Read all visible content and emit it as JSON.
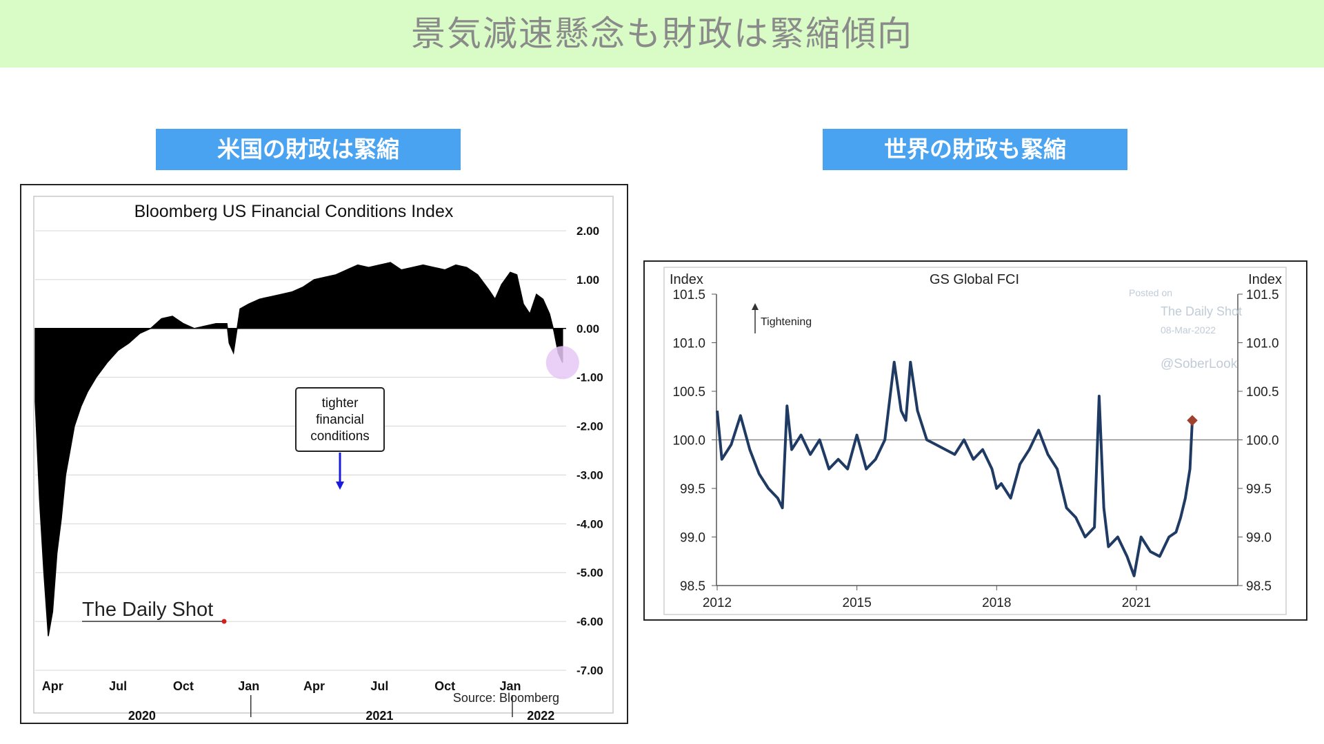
{
  "banner": {
    "title": "景気減速懸念も財政は緊縮傾向"
  },
  "labels": {
    "left": "米国の財政は緊縮",
    "right": "世界の財政も緊縮"
  },
  "colors": {
    "banner_bg": "#d9fcc7",
    "label_bg": "#4aa3f0",
    "us_fill": "#000000",
    "gs_line": "#1f3a63",
    "marker": "#a0412d",
    "highlight": "#e6c8f5"
  },
  "chart_data": [
    {
      "type": "area",
      "title": "Bloomberg US Financial Conditions Index",
      "ylim": [
        -7,
        2
      ],
      "y_ticks": [
        "2.00",
        "1.00",
        "0.00",
        "-1.00",
        "-2.00",
        "-3.00",
        "-4.00",
        "-5.00",
        "-6.00",
        "-7.00"
      ],
      "y_tick_values": [
        2,
        1,
        0,
        -1,
        -2,
        -3,
        -4,
        -5,
        -6,
        -7
      ],
      "x_month_labels": [
        "Apr",
        "Jul",
        "Oct",
        "Jan",
        "Apr",
        "Jul",
        "Oct",
        "Jan"
      ],
      "x_month_values": [
        0,
        3,
        6,
        9,
        12,
        15,
        18,
        21
      ],
      "x_year_labels": [
        "2020",
        "2021",
        "2022"
      ],
      "x_year_values": [
        4.1,
        15,
        22.4
      ],
      "xlim": [
        -0.8,
        23.5
      ],
      "annotation": [
        "tighter",
        "financial",
        "conditions"
      ],
      "source": "Source: Bloomberg",
      "watermark": "The Daily Shot",
      "series": [
        {
          "x": [
            -0.8,
            -0.6,
            -0.4,
            -0.2,
            0,
            0.2,
            0.4,
            0.6,
            0.8,
            1,
            1.3,
            1.6,
            2,
            2.5,
            3,
            3.5,
            4,
            4.5,
            5,
            5.5,
            6,
            6.5,
            7,
            7.5,
            8,
            8.1,
            8.3,
            8.6,
            9,
            9.5,
            10,
            10.5,
            11,
            11.5,
            12,
            12.5,
            13,
            13.5,
            14,
            14.5,
            15,
            15.5,
            16,
            16.5,
            17,
            17.5,
            18,
            18.5,
            19,
            19.5,
            20,
            20.3,
            20.6,
            21,
            21.3,
            21.6,
            21.9,
            22.2,
            22.5,
            22.8,
            23,
            23.2,
            23.4
          ],
          "values": [
            -1.5,
            -3.5,
            -5.0,
            -6.3,
            -5.8,
            -4.6,
            -3.9,
            -3.0,
            -2.5,
            -2.0,
            -1.6,
            -1.3,
            -1.0,
            -0.7,
            -0.45,
            -0.3,
            -0.1,
            0.0,
            0.2,
            0.25,
            0.1,
            0.0,
            0.05,
            0.1,
            0.1,
            -0.3,
            -0.5,
            0.4,
            0.5,
            0.6,
            0.65,
            0.7,
            0.75,
            0.85,
            1.0,
            1.05,
            1.1,
            1.2,
            1.3,
            1.25,
            1.3,
            1.35,
            1.2,
            1.25,
            1.3,
            1.25,
            1.2,
            1.3,
            1.25,
            1.1,
            0.8,
            0.6,
            0.9,
            1.15,
            1.1,
            0.5,
            0.3,
            0.7,
            0.6,
            0.3,
            -0.05,
            -0.5,
            -0.7
          ]
        }
      ]
    },
    {
      "type": "line",
      "title": "GS Global FCI",
      "ylabel_left": "Index",
      "ylabel_right": "Index",
      "ylim": [
        98.5,
        101.5
      ],
      "y_ticks": [
        "101.5",
        "101.0",
        "100.5",
        "100.0",
        "99.5",
        "99.0",
        "98.5"
      ],
      "y_tick_values": [
        101.5,
        101.0,
        100.5,
        100.0,
        99.5,
        99.0,
        98.5
      ],
      "x_ticks": [
        "2012",
        "2015",
        "2018",
        "2021"
      ],
      "x_tick_values": [
        2012,
        2015,
        2018,
        2021
      ],
      "xlim": [
        2012,
        2022.2
      ],
      "annotation": "Tightening",
      "watermark": [
        "Posted on",
        "The Daily Shot",
        "08-Mar-2022",
        "@SoberLook"
      ],
      "series": [
        {
          "x": [
            2012.0,
            2012.1,
            2012.3,
            2012.5,
            2012.7,
            2012.9,
            2013.1,
            2013.3,
            2013.4,
            2013.5,
            2013.6,
            2013.8,
            2014.0,
            2014.2,
            2014.4,
            2014.6,
            2014.8,
            2015.0,
            2015.2,
            2015.4,
            2015.6,
            2015.8,
            2015.95,
            2016.05,
            2016.15,
            2016.3,
            2016.5,
            2016.7,
            2016.9,
            2017.1,
            2017.3,
            2017.5,
            2017.7,
            2017.9,
            2018.0,
            2018.1,
            2018.3,
            2018.5,
            2018.7,
            2018.9,
            2019.1,
            2019.3,
            2019.5,
            2019.7,
            2019.9,
            2020.1,
            2020.2,
            2020.3,
            2020.4,
            2020.6,
            2020.8,
            2020.95,
            2021.1,
            2021.3,
            2021.5,
            2021.7,
            2021.85,
            2021.95,
            2022.05,
            2022.15,
            2022.2
          ],
          "values": [
            100.3,
            99.8,
            99.95,
            100.25,
            99.9,
            99.65,
            99.5,
            99.4,
            99.3,
            100.35,
            99.9,
            100.05,
            99.85,
            100.0,
            99.7,
            99.8,
            99.7,
            100.05,
            99.7,
            99.8,
            100.0,
            100.8,
            100.3,
            100.2,
            100.8,
            100.3,
            100.0,
            99.95,
            99.9,
            99.85,
            100.0,
            99.8,
            99.9,
            99.7,
            99.5,
            99.55,
            99.4,
            99.75,
            99.9,
            100.1,
            99.85,
            99.7,
            99.3,
            99.2,
            99.0,
            99.1,
            100.45,
            99.3,
            98.9,
            99.0,
            98.8,
            98.6,
            99.0,
            98.85,
            98.8,
            99.0,
            99.05,
            99.2,
            99.4,
            99.7,
            100.2
          ]
        }
      ],
      "reference_line": 100.0
    }
  ]
}
